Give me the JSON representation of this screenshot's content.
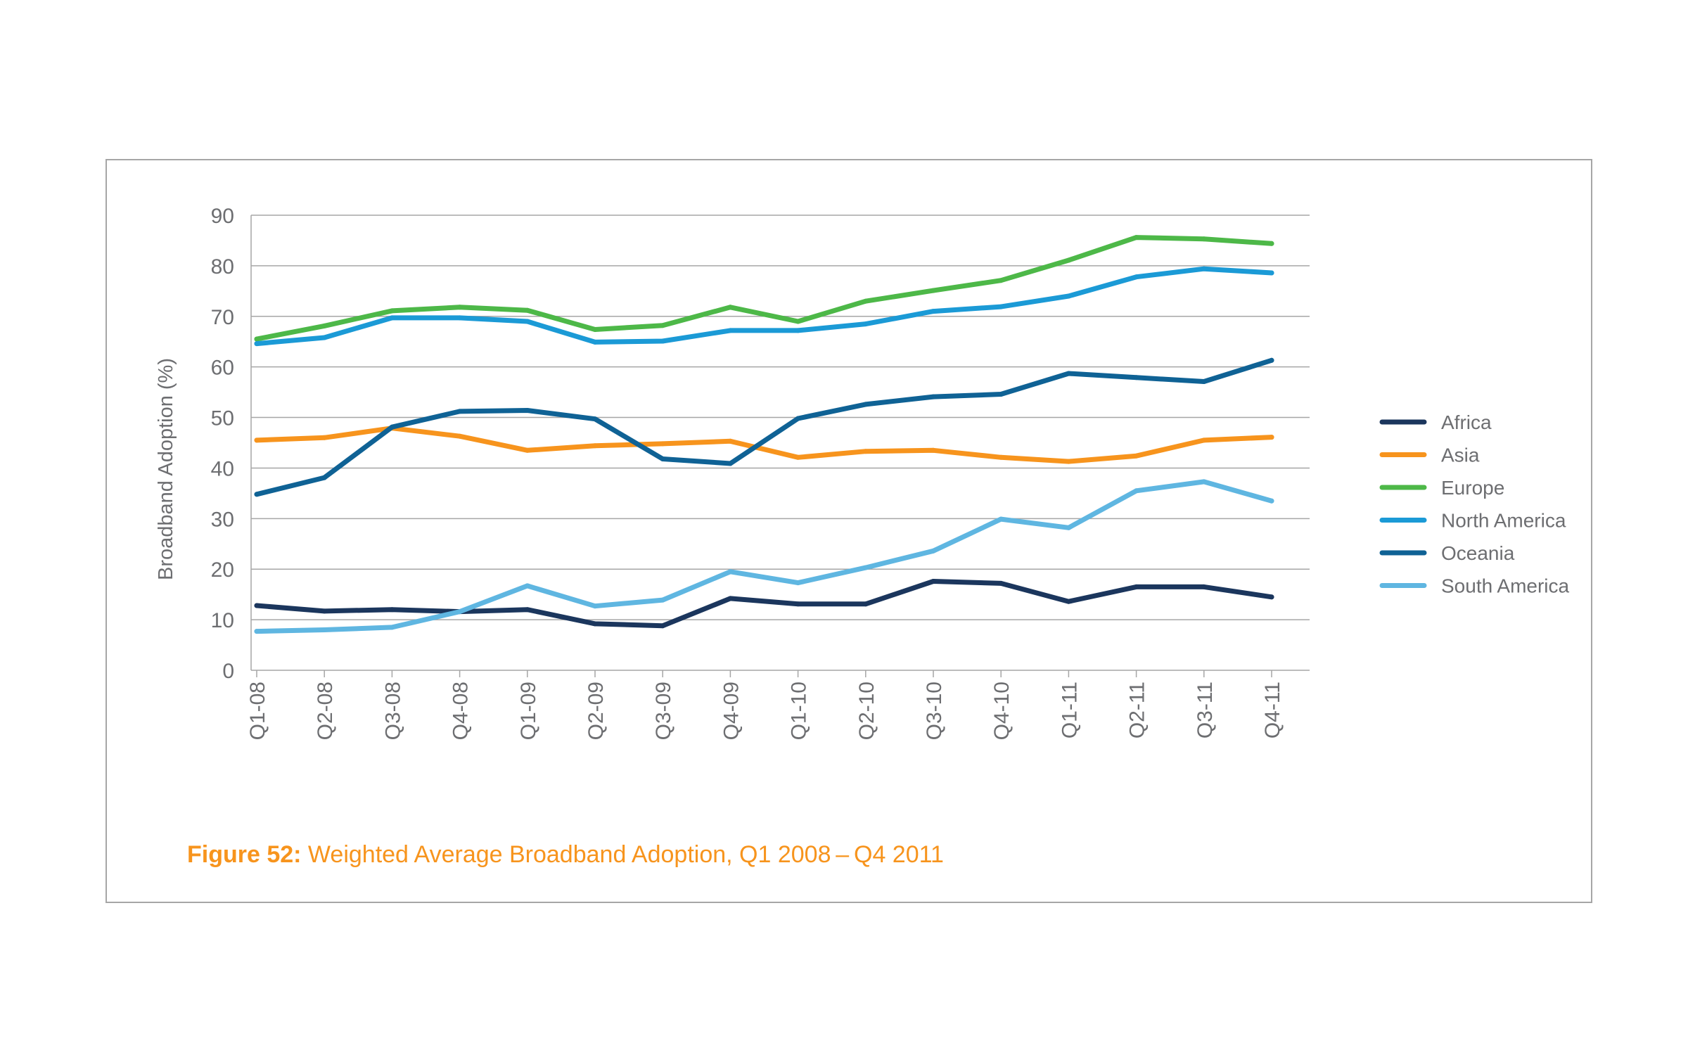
{
  "chart_data": {
    "type": "line",
    "title": "",
    "xlabel": "",
    "ylabel": "Broadband Adoption (%)",
    "ylim": [
      0,
      90
    ],
    "yticks": [
      0,
      10,
      20,
      30,
      40,
      50,
      60,
      70,
      80,
      90
    ],
    "grid": true,
    "legend_position": "right",
    "categories": [
      "Q1-08",
      "Q2-08",
      "Q3-08",
      "Q4-08",
      "Q1-09",
      "Q2-09",
      "Q3-09",
      "Q4-09",
      "Q1-10",
      "Q2-10",
      "Q3-10",
      "Q4-10",
      "Q1-11",
      "Q2-11",
      "Q3-11",
      "Q4-11"
    ],
    "series": [
      {
        "name": "Africa",
        "color": "#1b365d",
        "values": [
          12.8,
          11.7,
          12.0,
          11.6,
          12.0,
          9.2,
          8.8,
          14.2,
          13.1,
          13.1,
          17.6,
          17.2,
          13.6,
          16.5,
          16.5,
          14.5
        ]
      },
      {
        "name": "Asia",
        "color": "#f7941d",
        "values": [
          45.5,
          46.0,
          47.9,
          46.3,
          43.5,
          44.4,
          44.8,
          45.3,
          42.1,
          43.3,
          43.5,
          42.1,
          41.3,
          42.4,
          45.5,
          46.1
        ]
      },
      {
        "name": "Europe",
        "color": "#4db848",
        "values": [
          65.5,
          68.1,
          71.1,
          71.8,
          71.2,
          67.4,
          68.2,
          71.8,
          69.0,
          73.0,
          75.1,
          77.1,
          81.1,
          85.6,
          85.3,
          84.4
        ]
      },
      {
        "name": "North America",
        "color": "#1b9ad6",
        "values": [
          64.6,
          65.8,
          69.7,
          69.7,
          69.0,
          64.9,
          65.1,
          67.2,
          67.2,
          68.5,
          71.0,
          71.9,
          74.0,
          77.8,
          79.4,
          78.6
        ]
      },
      {
        "name": "Oceania",
        "color": "#0f6295",
        "values": [
          34.8,
          38.1,
          48.1,
          51.2,
          51.4,
          49.7,
          41.8,
          40.9,
          49.8,
          52.6,
          54.1,
          54.6,
          58.7,
          57.9,
          57.1,
          61.3
        ]
      },
      {
        "name": "South America",
        "color": "#5fb6e1",
        "values": [
          7.7,
          8.0,
          8.5,
          11.6,
          16.7,
          12.7,
          13.9,
          19.5,
          17.3,
          20.3,
          23.6,
          29.9,
          28.2,
          35.5,
          37.3,
          33.5
        ]
      }
    ]
  },
  "caption": {
    "figure_label": "Figure 52:",
    "text": " Weighted Average Broadband Adoption, Q1 2008 – Q4 2011"
  }
}
